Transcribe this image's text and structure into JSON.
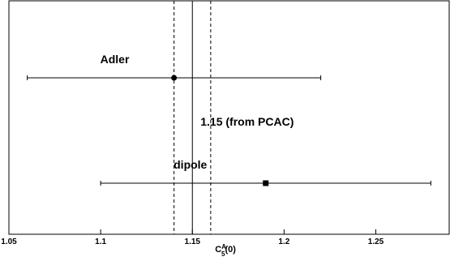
{
  "chart_data": {
    "type": "scatter",
    "title": "",
    "xlabel": "C_5^A(0)",
    "xlabel_parts": {
      "base": "C",
      "superscript": "A",
      "subscript": "5",
      "suffix": "(0)"
    },
    "ylabel": "",
    "xlim": [
      1.05,
      1.29
    ],
    "x_ticks": [
      1.05,
      1.1,
      1.15,
      1.2,
      1.25
    ],
    "x_tick_labels": [
      "1.05",
      "1.1",
      "1.15",
      "1.2",
      "1.25"
    ],
    "grid": false,
    "series": [
      {
        "name": "Adler",
        "x": 1.14,
        "xerr_low": 1.06,
        "xerr_high": 1.22,
        "marker": "circle"
      },
      {
        "name": "dipole",
        "x": 1.19,
        "xerr_low": 1.1,
        "xerr_high": 1.28,
        "marker": "square"
      }
    ],
    "reference": {
      "value": 1.15,
      "band": [
        1.14,
        1.16
      ],
      "label": "1.15 (from PCAC)"
    }
  }
}
